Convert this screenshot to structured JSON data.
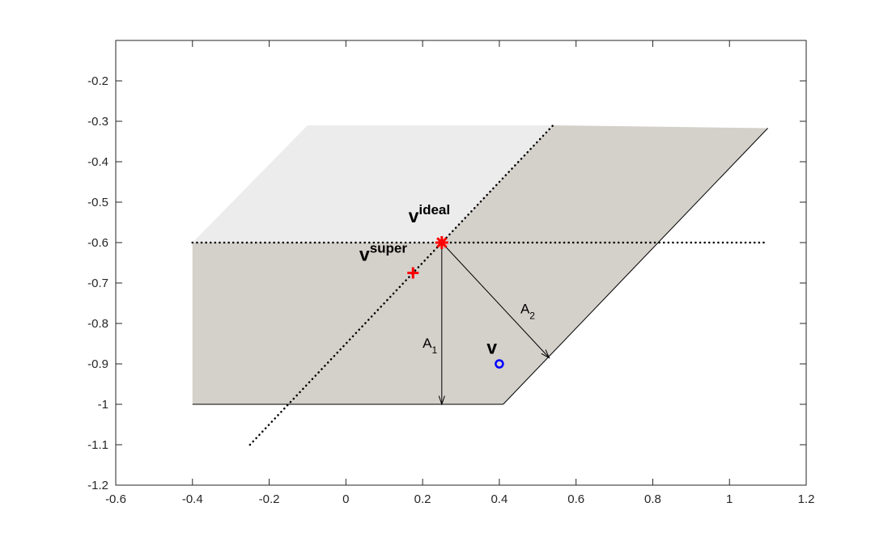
{
  "chart_data": {
    "type": "scatter",
    "title": "",
    "xlabel": "",
    "ylabel": "",
    "xlim": [
      -0.6,
      1.2
    ],
    "ylim": [
      -1.2,
      -0.1
    ],
    "xticks": [
      -0.6,
      -0.4,
      -0.2,
      0,
      0.2,
      0.4,
      0.6,
      0.8,
      1,
      1.2
    ],
    "yticks": [
      -1.2,
      -1.1,
      -1,
      -0.9,
      -0.8,
      -0.7,
      -0.6,
      -0.5,
      -0.4,
      -0.3,
      -0.2
    ],
    "xtick_labels": [
      "-0.6",
      "-0.4",
      "-0.2",
      "0",
      "0.2",
      "0.4",
      "0.6",
      "0.8",
      "1",
      "1.2"
    ],
    "ytick_labels": [
      "-1.2",
      "-1.1",
      "-1",
      "-0.9",
      "-0.8",
      "-0.7",
      "-0.6",
      "-0.5",
      "-0.4",
      "-0.3",
      "-0.2"
    ],
    "grid": false,
    "colors": {
      "region_light": "#ececec",
      "region_dark": "#d4d0ca",
      "ideal_marker": "#ff0000",
      "super_marker": "#ff0000",
      "v_marker": "#0000ff",
      "lines": "#000000"
    },
    "regions": [
      {
        "name": "light-region",
        "polygon": [
          [
            -0.4,
            -0.6
          ],
          [
            -0.1,
            -0.31
          ],
          [
            0.54,
            -0.31
          ],
          [
            0.25,
            -0.6
          ]
        ]
      },
      {
        "name": "dark-region",
        "polygon": [
          [
            -0.4,
            -0.6
          ],
          [
            0.25,
            -0.6
          ],
          [
            0.54,
            -0.31
          ],
          [
            1.1,
            -0.317
          ],
          [
            0.41,
            -1.0
          ],
          [
            -0.4,
            -1.0
          ]
        ]
      }
    ],
    "dotted_lines": [
      {
        "name": "horizontal-dotted-line",
        "points": [
          [
            -0.4,
            -0.6
          ],
          [
            1.1,
            -0.6
          ]
        ]
      },
      {
        "name": "diagonal-dotted-line",
        "points": [
          [
            -0.25,
            -1.1
          ],
          [
            0.54,
            -0.31
          ]
        ]
      }
    ],
    "solid_lines": [
      {
        "name": "bottom-edge-line",
        "points": [
          [
            -0.4,
            -1.0
          ],
          [
            0.41,
            -1.0
          ]
        ]
      },
      {
        "name": "right-edge-line",
        "points": [
          [
            0.41,
            -1.0
          ],
          [
            1.1,
            -0.317
          ]
        ]
      }
    ],
    "arrows": [
      {
        "name": "A1",
        "from": [
          0.25,
          -0.6
        ],
        "to": [
          0.25,
          -1.0
        ],
        "label": "A",
        "subscript": "1",
        "label_pos": [
          0.2,
          -0.86
        ]
      },
      {
        "name": "A2",
        "from": [
          0.25,
          -0.6
        ],
        "to": [
          0.53,
          -0.885
        ],
        "label": "A",
        "subscript": "2",
        "label_pos": [
          0.455,
          -0.775
        ]
      }
    ],
    "points": [
      {
        "name": "v-ideal",
        "x": 0.25,
        "y": -0.6,
        "marker": "asterisk",
        "label": "v",
        "superscript": "ideal",
        "label_pos": [
          0.163,
          -0.55
        ]
      },
      {
        "name": "v-super",
        "x": 0.175,
        "y": -0.675,
        "marker": "plus",
        "label": "v",
        "superscript": "super",
        "label_pos": [
          0.035,
          -0.645
        ]
      },
      {
        "name": "v",
        "x": 0.4,
        "y": -0.9,
        "marker": "circle",
        "label": "v",
        "label_pos": [
          0.367,
          -0.875
        ]
      }
    ]
  }
}
